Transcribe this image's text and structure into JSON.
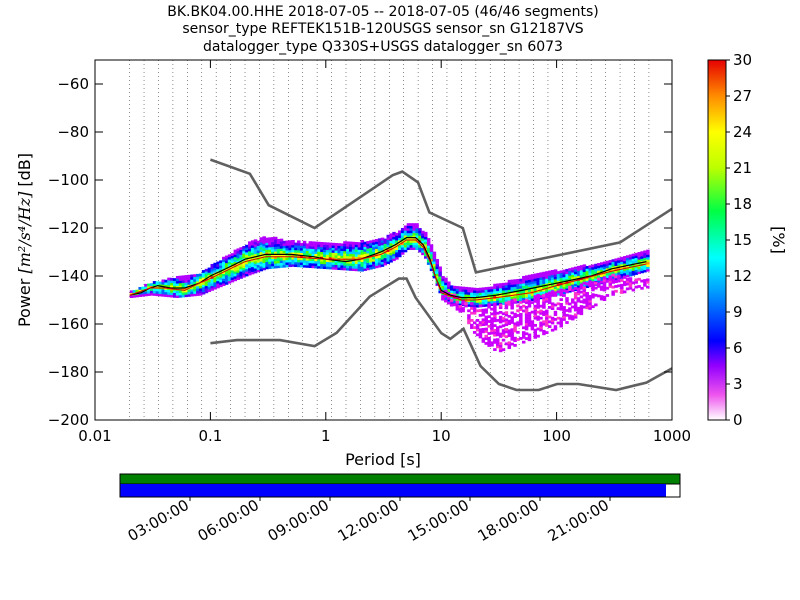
{
  "title_lines": [
    "BK.BK04.00.HHE   2018-07-05 -- 2018-07-05  (46/46 segments)",
    "sensor_type REFTEK151B-120USGS sensor_sn G12187VS",
    "datalogger_type Q330S+USGS datalogger_sn 6073"
  ],
  "chart_data": {
    "type": "heatmap",
    "xlabel": "Period [s]",
    "ylabel": "Power [m²/s⁴/Hz] [dB]",
    "ylabel_parts": {
      "pre": "Power ",
      "math": "[m²/s⁴/Hz]",
      "post": " [dB]"
    },
    "x_scale": "log",
    "xlim": [
      0.01,
      1000
    ],
    "ylim": [
      -200,
      -50
    ],
    "x_ticks": [
      {
        "value": 0.01,
        "label": "0.01"
      },
      {
        "value": 0.1,
        "label": "0.1"
      },
      {
        "value": 1,
        "label": "1"
      },
      {
        "value": 10,
        "label": "10"
      },
      {
        "value": 100,
        "label": "100"
      },
      {
        "value": 1000,
        "label": "1000"
      }
    ],
    "y_ticks": [
      {
        "value": -60,
        "label": "−60"
      },
      {
        "value": -80,
        "label": "−80"
      },
      {
        "value": -100,
        "label": "−100"
      },
      {
        "value": -120,
        "label": "−120"
      },
      {
        "value": -140,
        "label": "−140"
      },
      {
        "value": -160,
        "label": "−160"
      },
      {
        "value": -180,
        "label": "−180"
      },
      {
        "value": -200,
        "label": "−200"
      }
    ],
    "grid": "vertical dotted at period bins",
    "colorbar": {
      "label": "[%]",
      "range": [
        0,
        30
      ],
      "ticks": [
        "0",
        "3",
        "6",
        "9",
        "12",
        "15",
        "18",
        "21",
        "24",
        "27",
        "30"
      ],
      "colormap": "pqlx (white-purple-blue-cyan-green-yellow-red)"
    },
    "high_noise_model": {
      "color": "#606060",
      "points": [
        [
          0.1,
          -91.5
        ],
        [
          0.22,
          -97.4
        ],
        [
          0.32,
          -110.5
        ],
        [
          0.8,
          -120
        ],
        [
          3.8,
          -98
        ],
        [
          4.6,
          -96.5
        ],
        [
          6.3,
          -101
        ],
        [
          7.9,
          -113.5
        ],
        [
          15.4,
          -120
        ],
        [
          20,
          -138.5
        ],
        [
          354.8,
          -126
        ],
        [
          1000,
          -112
        ]
      ]
    },
    "low_noise_model": {
      "color": "#606060",
      "points": [
        [
          0.1,
          -168
        ],
        [
          0.17,
          -166.7
        ],
        [
          0.4,
          -166.7
        ],
        [
          0.8,
          -169.2
        ],
        [
          1.24,
          -163.7
        ],
        [
          2.4,
          -148.6
        ],
        [
          4.3,
          -141.1
        ],
        [
          5,
          -141.1
        ],
        [
          6,
          -149
        ],
        [
          10,
          -163.8
        ],
        [
          12,
          -166.2
        ],
        [
          15.6,
          -162
        ],
        [
          21.9,
          -177.5
        ],
        [
          31.6,
          -185
        ],
        [
          45,
          -187.5
        ],
        [
          70,
          -187.5
        ],
        [
          101,
          -185
        ],
        [
          154,
          -185
        ],
        [
          328,
          -187.5
        ],
        [
          600,
          -184.4
        ],
        [
          1000,
          -178.5
        ]
      ]
    },
    "mean_curve": {
      "color": "#000000",
      "points": [
        [
          0.02,
          -148
        ],
        [
          0.025,
          -147
        ],
        [
          0.03,
          -145
        ],
        [
          0.035,
          -144
        ],
        [
          0.045,
          -145
        ],
        [
          0.06,
          -145
        ],
        [
          0.08,
          -143
        ],
        [
          0.1,
          -140
        ],
        [
          0.15,
          -136
        ],
        [
          0.2,
          -133
        ],
        [
          0.3,
          -131
        ],
        [
          0.5,
          -131
        ],
        [
          0.8,
          -132
        ],
        [
          1,
          -133
        ],
        [
          1.5,
          -134
        ],
        [
          2,
          -133
        ],
        [
          3,
          -130
        ],
        [
          4,
          -127
        ],
        [
          5,
          -124
        ],
        [
          6,
          -124
        ],
        [
          7,
          -127
        ],
        [
          8,
          -133
        ],
        [
          9,
          -141
        ],
        [
          10,
          -146
        ],
        [
          12,
          -148
        ],
        [
          15,
          -149
        ],
        [
          20,
          -149
        ],
        [
          30,
          -148
        ],
        [
          50,
          -146
        ],
        [
          100,
          -143
        ],
        [
          200,
          -140
        ],
        [
          300,
          -137
        ],
        [
          600,
          -134
        ]
      ]
    },
    "mode_curve": {
      "color": "#d40000",
      "points": [
        [
          0.02,
          -148
        ],
        [
          0.03,
          -145
        ],
        [
          0.04,
          -145
        ],
        [
          0.06,
          -146
        ],
        [
          0.08,
          -143
        ],
        [
          0.1,
          -141
        ],
        [
          0.2,
          -134
        ],
        [
          0.3,
          -132
        ],
        [
          0.5,
          -132
        ],
        [
          1,
          -133
        ],
        [
          2,
          -133
        ],
        [
          3,
          -131
        ],
        [
          4,
          -128
        ],
        [
          5,
          -125
        ],
        [
          6,
          -125
        ],
        [
          7,
          -128
        ],
        [
          8,
          -134
        ],
        [
          10,
          -147
        ],
        [
          15,
          -150
        ],
        [
          20,
          -150
        ],
        [
          30,
          -149
        ],
        [
          60,
          -147
        ],
        [
          100,
          -144
        ],
        [
          300,
          -138
        ],
        [
          600,
          -135
        ]
      ]
    },
    "band_upper": [
      [
        0.02,
        -147
      ],
      [
        0.03,
        -143
      ],
      [
        0.05,
        -141
      ],
      [
        0.08,
        -139
      ],
      [
        0.1,
        -136
      ],
      [
        0.2,
        -127
      ],
      [
        0.3,
        -124
      ],
      [
        0.5,
        -126
      ],
      [
        1,
        -127
      ],
      [
        2,
        -126
      ],
      [
        3,
        -125
      ],
      [
        4,
        -122
      ],
      [
        5,
        -119
      ],
      [
        6,
        -119
      ],
      [
        7,
        -122
      ],
      [
        8,
        -128
      ],
      [
        10,
        -140
      ],
      [
        12,
        -145
      ],
      [
        20,
        -146
      ],
      [
        50,
        -141
      ],
      [
        100,
        -138
      ],
      [
        300,
        -134
      ],
      [
        600,
        -130
      ]
    ],
    "band_lower": [
      [
        0.02,
        -149
      ],
      [
        0.03,
        -148
      ],
      [
        0.05,
        -149
      ],
      [
        0.08,
        -148
      ],
      [
        0.1,
        -146
      ],
      [
        0.2,
        -140
      ],
      [
        0.3,
        -137
      ],
      [
        0.5,
        -136
      ],
      [
        1,
        -137
      ],
      [
        2,
        -138
      ],
      [
        3,
        -136
      ],
      [
        4,
        -133
      ],
      [
        5,
        -129
      ],
      [
        6,
        -129
      ],
      [
        7,
        -132
      ],
      [
        8,
        -138
      ],
      [
        10,
        -150
      ],
      [
        12,
        -152
      ],
      [
        20,
        -153
      ],
      [
        50,
        -151
      ],
      [
        100,
        -148
      ],
      [
        300,
        -142
      ],
      [
        600,
        -138
      ]
    ],
    "outlier_band_upper": [
      [
        10,
        -146
      ],
      [
        15,
        -150
      ],
      [
        20,
        -153
      ],
      [
        30,
        -151
      ],
      [
        50,
        -150
      ],
      [
        100,
        -146
      ],
      [
        300,
        -140
      ],
      [
        600,
        -142
      ]
    ],
    "outlier_band_lower": [
      [
        10,
        -150
      ],
      [
        15,
        -156
      ],
      [
        20,
        -166
      ],
      [
        30,
        -172
      ],
      [
        50,
        -168
      ],
      [
        100,
        -162
      ],
      [
        300,
        -148
      ],
      [
        600,
        -145
      ]
    ],
    "timeline": {
      "coverage_color": "#0000ff",
      "segment_color": "#008000",
      "coverage_fraction": 0.975,
      "tick_labels": [
        "03:00:00",
        "06:00:00",
        "09:00:00",
        "12:00:00",
        "15:00:00",
        "18:00:00",
        "21:00:00"
      ]
    }
  }
}
